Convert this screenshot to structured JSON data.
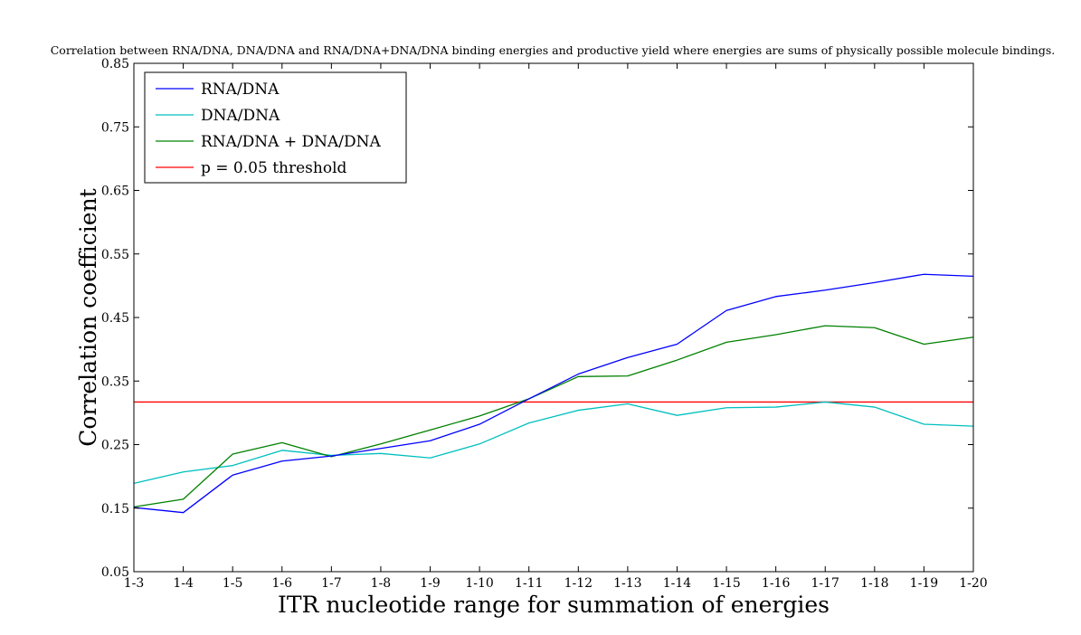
{
  "chart_data": {
    "type": "line",
    "title": "Correlation between RNA/DNA, DNA/DNA and RNA/DNA+DNA/DNA binding energies and productive yield where energies are sums of physically possible molecule bindings.",
    "xlabel": "ITR nucleotide range for summation of energies",
    "ylabel": "Correlation coefficient",
    "categories": [
      "1-3",
      "1-4",
      "1-5",
      "1-6",
      "1-7",
      "1-8",
      "1-9",
      "1-10",
      "1-11",
      "1-12",
      "1-13",
      "1-14",
      "1-15",
      "1-16",
      "1-17",
      "1-18",
      "1-19",
      "1-20"
    ],
    "ylim": [
      0.05,
      0.85
    ],
    "yticks": [
      "0.05",
      "0.15",
      "0.25",
      "0.35",
      "0.45",
      "0.55",
      "0.65",
      "0.75",
      "0.85"
    ],
    "grid": false,
    "legend_position": "top-left",
    "series": [
      {
        "name": "RNA/DNA",
        "color": "#0000ff",
        "values": [
          0.151,
          0.143,
          0.202,
          0.224,
          0.232,
          0.244,
          0.256,
          0.282,
          0.322,
          0.361,
          0.387,
          0.408,
          0.461,
          0.483,
          0.493,
          0.505,
          0.518,
          0.515
        ]
      },
      {
        "name": "DNA/DNA",
        "color": "#00bfbf",
        "values": [
          0.189,
          0.207,
          0.217,
          0.241,
          0.233,
          0.236,
          0.229,
          0.251,
          0.284,
          0.304,
          0.314,
          0.296,
          0.308,
          0.309,
          0.317,
          0.309,
          0.282,
          0.279
        ]
      },
      {
        "name": "RNA/DNA + DNA/DNA",
        "color": "#008000",
        "values": [
          0.152,
          0.164,
          0.235,
          0.253,
          0.231,
          0.251,
          0.273,
          0.295,
          0.322,
          0.357,
          0.358,
          0.383,
          0.411,
          0.423,
          0.437,
          0.434,
          0.408,
          0.419
        ]
      }
    ],
    "threshold": {
      "name": "p = 0.05 threshold",
      "color": "#ff0000",
      "value": 0.317
    }
  }
}
